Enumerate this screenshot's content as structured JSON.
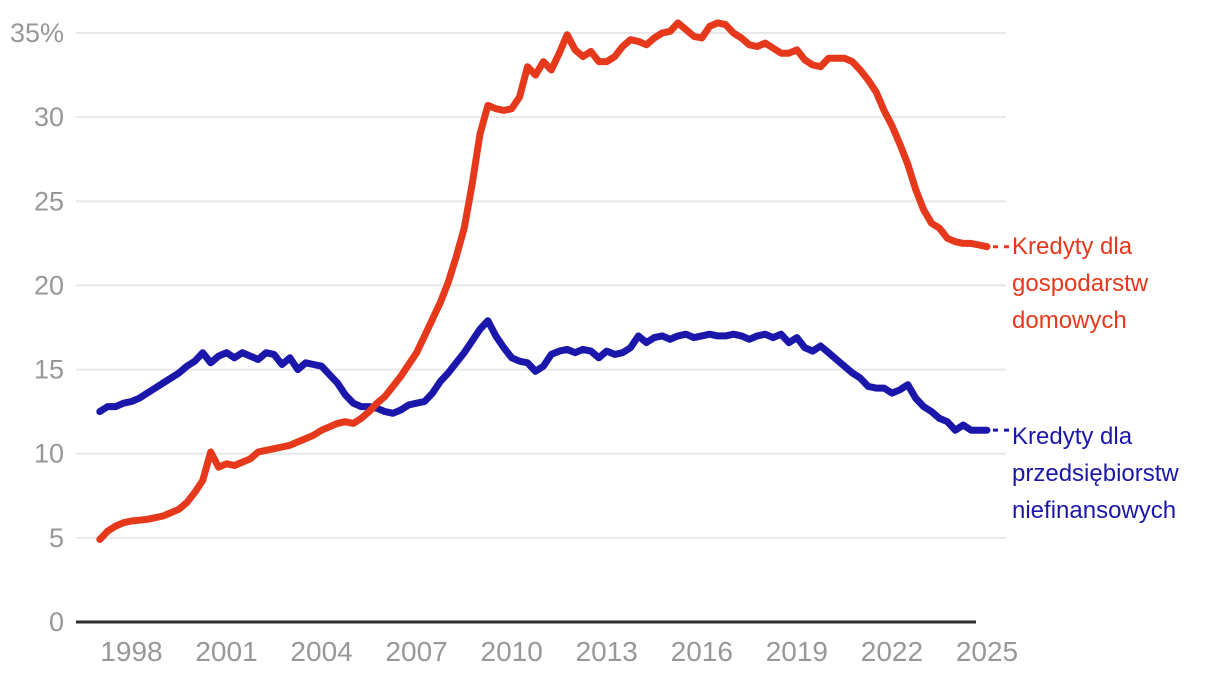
{
  "chart_data": {
    "type": "line",
    "title": "",
    "unit": "%",
    "grid": true,
    "legend_position": "right",
    "x_axis": {
      "min": 1996.25,
      "max": 2025.6,
      "ticks": [
        {
          "value": 1998,
          "label": "1998"
        },
        {
          "value": 2001,
          "label": "2001"
        },
        {
          "value": 2004,
          "label": "2004"
        },
        {
          "value": 2007,
          "label": "2007"
        },
        {
          "value": 2010,
          "label": "2010"
        },
        {
          "value": 2013,
          "label": "2013"
        },
        {
          "value": 2016,
          "label": "2016"
        },
        {
          "value": 2019,
          "label": "2019"
        },
        {
          "value": 2022,
          "label": "2022"
        },
        {
          "value": 2025,
          "label": "2025"
        }
      ]
    },
    "y_axis": {
      "min": 0,
      "max": 35,
      "ticks": [
        {
          "value": 35,
          "label": "35%"
        },
        {
          "value": 30,
          "label": "30"
        },
        {
          "value": 25,
          "label": "25"
        },
        {
          "value": 20,
          "label": "20"
        },
        {
          "value": 15,
          "label": "15"
        },
        {
          "value": 10,
          "label": "10"
        },
        {
          "value": 5,
          "label": "5"
        },
        {
          "value": 0,
          "label": "0"
        }
      ]
    },
    "x_start": 1997.0,
    "x_step": 0.25,
    "series": [
      {
        "id": "households",
        "name": "Kredyty dla gospodarstw domowych",
        "legend_lines": [
          "Kredyty dla",
          "gospodarstw",
          "domowych"
        ],
        "color": "#e6391c",
        "values": [
          4.9,
          5.4,
          5.7,
          5.9,
          6.0,
          6.05,
          6.1,
          6.2,
          6.3,
          6.5,
          6.7,
          7.1,
          7.7,
          8.4,
          10.1,
          9.2,
          9.4,
          9.3,
          9.5,
          9.7,
          10.1,
          10.2,
          10.3,
          10.4,
          10.5,
          10.7,
          10.9,
          11.1,
          11.4,
          11.6,
          11.8,
          11.9,
          11.8,
          12.1,
          12.5,
          13.0,
          13.4,
          14.0,
          14.6,
          15.3,
          16.0,
          17.0,
          18.0,
          19.0,
          20.2,
          21.7,
          23.4,
          26.0,
          29.0,
          30.7,
          30.5,
          30.4,
          30.5,
          31.2,
          33.0,
          32.5,
          33.3,
          32.8,
          33.8,
          34.9,
          34.0,
          33.6,
          33.9,
          33.3,
          33.3,
          33.6,
          34.2,
          34.6,
          34.5,
          34.3,
          34.7,
          35.0,
          35.1,
          35.6,
          35.2,
          34.8,
          34.7,
          35.4,
          35.6,
          35.5,
          35.0,
          34.7,
          34.3,
          34.2,
          34.4,
          34.1,
          33.8,
          33.8,
          34.0,
          33.4,
          33.1,
          33.0,
          33.5,
          33.5,
          33.5,
          33.3,
          32.8,
          32.2,
          31.5,
          30.4,
          29.5,
          28.4,
          27.2,
          25.7,
          24.5,
          23.7,
          23.4,
          22.8,
          22.6,
          22.5,
          22.5,
          22.4,
          22.3
        ]
      },
      {
        "id": "enterprises",
        "name": "Kredyty dla przedsiębiorstw niefinansowych",
        "legend_lines": [
          "Kredyty dla",
          "przedsiębiorstw",
          "niefinansowych"
        ],
        "color": "#1c17ab",
        "values": [
          12.5,
          12.8,
          12.8,
          13.0,
          13.1,
          13.3,
          13.6,
          13.9,
          14.2,
          14.5,
          14.8,
          15.2,
          15.5,
          16.0,
          15.4,
          15.8,
          16.0,
          15.7,
          16.0,
          15.8,
          15.6,
          16.0,
          15.9,
          15.3,
          15.7,
          15.0,
          15.4,
          15.3,
          15.2,
          14.7,
          14.2,
          13.5,
          13.0,
          12.8,
          12.8,
          12.7,
          12.5,
          12.4,
          12.6,
          12.9,
          13.0,
          13.1,
          13.6,
          14.3,
          14.8,
          15.4,
          16.0,
          16.7,
          17.4,
          17.9,
          17.0,
          16.3,
          15.7,
          15.5,
          15.4,
          14.9,
          15.2,
          15.9,
          16.1,
          16.2,
          16.0,
          16.2,
          16.1,
          15.7,
          16.1,
          15.9,
          16.0,
          16.3,
          17.0,
          16.6,
          16.9,
          17.0,
          16.8,
          17.0,
          17.1,
          16.9,
          17.0,
          17.1,
          17.0,
          17.0,
          17.1,
          17.0,
          16.8,
          17.0,
          17.1,
          16.9,
          17.1,
          16.6,
          16.9,
          16.3,
          16.1,
          16.4,
          16.0,
          15.6,
          15.2,
          14.8,
          14.5,
          14.0,
          13.9,
          13.9,
          13.6,
          13.8,
          14.1,
          13.3,
          12.8,
          12.5,
          12.1,
          11.9,
          11.4,
          11.7,
          11.4,
          11.4,
          11.4
        ]
      }
    ]
  },
  "colors": {
    "background": "#ffffff",
    "grid": "#e8e8e8",
    "axis": "#2e2e2e",
    "tick_text": "#96989b"
  }
}
